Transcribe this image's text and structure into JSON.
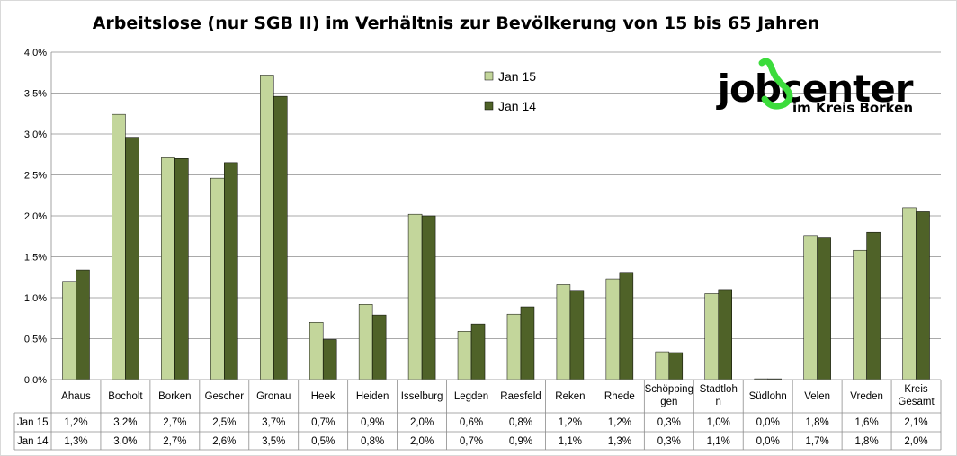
{
  "chart_data": {
    "type": "bar",
    "title": "Arbeitslose (nur SGB II) im Verhältnis zur Bevölkerung von 15 bis 65 Jahren",
    "categories": [
      [
        "Ahaus"
      ],
      [
        "Bocholt"
      ],
      [
        "Borken"
      ],
      [
        "Gescher"
      ],
      [
        "Gronau"
      ],
      [
        "Heek"
      ],
      [
        "Heiden"
      ],
      [
        "Isselburg"
      ],
      [
        "Legden"
      ],
      [
        "Raesfeld"
      ],
      [
        "Reken"
      ],
      [
        "Rhede"
      ],
      [
        "Schöpping",
        "gen"
      ],
      [
        "Stadtloh",
        "n"
      ],
      [
        "Südlohn"
      ],
      [
        "Velen"
      ],
      [
        "Vreden"
      ],
      [
        "Kreis",
        "Gesamt"
      ]
    ],
    "series": [
      {
        "name": "Jan 15",
        "color": "#c3d69b",
        "values": [
          1.2,
          3.24,
          2.71,
          2.46,
          3.72,
          0.7,
          0.92,
          2.02,
          0.59,
          0.8,
          1.16,
          1.23,
          0.34,
          1.05,
          0.01,
          1.76,
          1.58,
          2.1
        ],
        "labels": [
          "1,2%",
          "3,2%",
          "2,7%",
          "2,5%",
          "3,7%",
          "0,7%",
          "0,9%",
          "2,0%",
          "0,6%",
          "0,8%",
          "1,2%",
          "1,2%",
          "0,3%",
          "1,0%",
          "0,0%",
          "1,8%",
          "1,6%",
          "2,1%"
        ]
      },
      {
        "name": "Jan 14",
        "color": "#4f6228",
        "values": [
          1.34,
          2.96,
          2.7,
          2.65,
          3.46,
          0.49,
          0.79,
          2.0,
          0.68,
          0.89,
          1.09,
          1.31,
          0.33,
          1.1,
          0.01,
          1.73,
          1.8,
          2.05
        ],
        "labels": [
          "1,3%",
          "3,0%",
          "2,7%",
          "2,6%",
          "3,5%",
          "0,5%",
          "0,8%",
          "2,0%",
          "0,7%",
          "0,9%",
          "1,1%",
          "1,3%",
          "0,3%",
          "1,1%",
          "0,0%",
          "1,7%",
          "1,8%",
          "2,0%"
        ]
      }
    ],
    "ylim": [
      0,
      4.0
    ],
    "yticks": [
      "0,0%",
      "0,5%",
      "1,0%",
      "1,5%",
      "2,0%",
      "2,5%",
      "3,0%",
      "3,5%",
      "4,0%"
    ],
    "grid": true,
    "legend": "top-center",
    "data_table": true
  },
  "logo": {
    "text_main": "jobcenter",
    "text_sub": "im Kreis Borken",
    "accent_color": "#3cdc3c"
  }
}
